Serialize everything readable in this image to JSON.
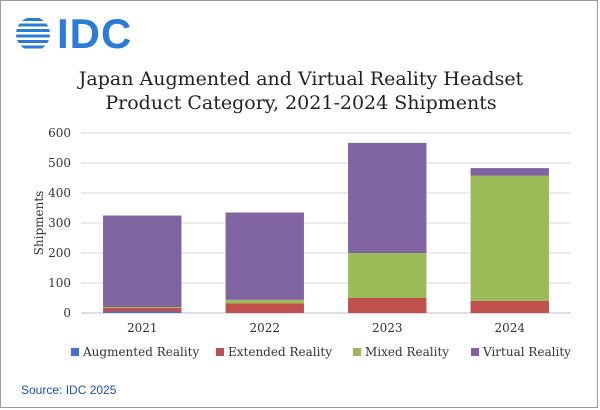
{
  "brand": {
    "name": "IDC",
    "color": "#2b7bd8"
  },
  "chart_data": {
    "type": "bar",
    "stacked": true,
    "title_lines": [
      "Japan Augmented and Virtual Reality Headset",
      "Product Category, 2021-2024 Shipments"
    ],
    "ylabel": "Shipments",
    "xlabel": "",
    "ylim": [
      0,
      600
    ],
    "yticks": [
      0,
      100,
      200,
      300,
      400,
      500,
      600
    ],
    "grid": true,
    "legend_position": "bottom",
    "categories": [
      "2021",
      "2022",
      "2023",
      "2024"
    ],
    "series": [
      {
        "name": "Augmented Reality",
        "color": "#4472c4",
        "values": [
          5,
          0,
          0,
          0
        ]
      },
      {
        "name": "Extended Reality",
        "color": "#c0504d",
        "values": [
          12,
          32,
          50,
          40
        ]
      },
      {
        "name": "Mixed Reality",
        "color": "#9bbb59",
        "values": [
          3,
          12,
          150,
          418
        ]
      },
      {
        "name": "Virtual Reality",
        "color": "#8064a2",
        "values": [
          305,
          291,
          367,
          25
        ]
      }
    ]
  },
  "source": "Source: IDC 2025"
}
